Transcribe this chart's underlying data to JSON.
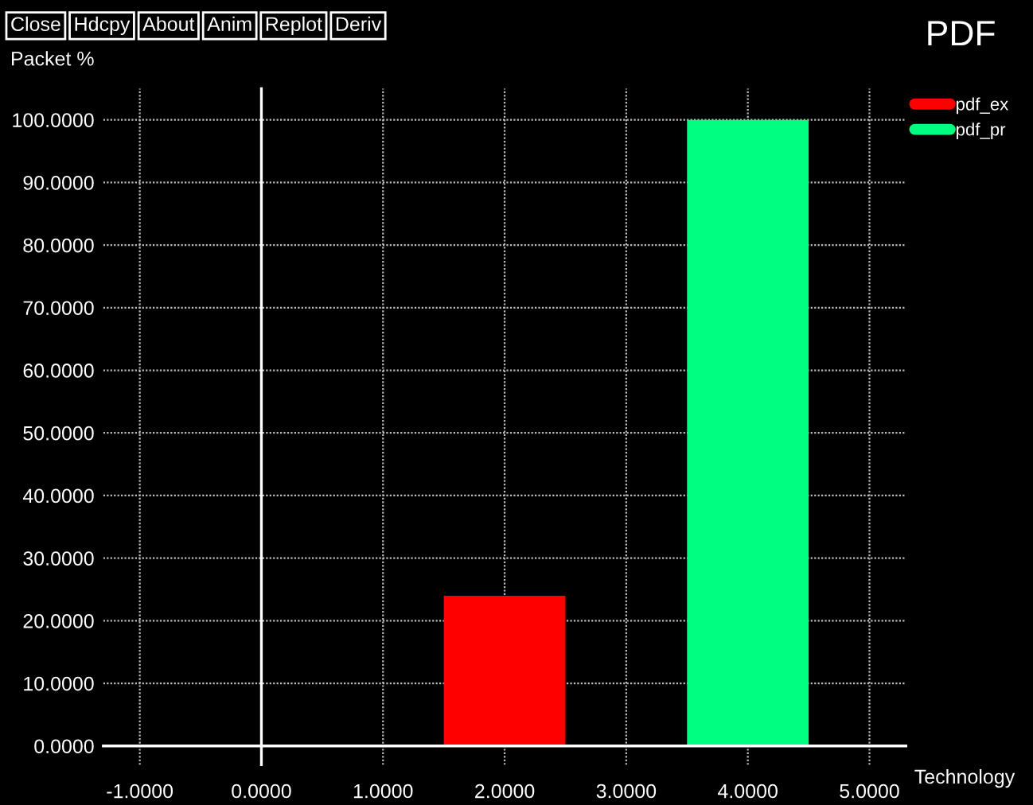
{
  "chart_data": {
    "type": "bar",
    "title": "PDF",
    "xlabel": "Technology",
    "ylabel": "Packet %",
    "annotations": [
      "Close",
      "Hdcpy",
      "About",
      "Anim",
      "Replot",
      "Deriv"
    ],
    "series": [
      {
        "name": "pdf_ex",
        "color": "#ff0000",
        "x": [
          2
        ],
        "values": [
          24
        ]
      },
      {
        "name": "pdf_pr",
        "color": "#00ff80",
        "x": [
          4
        ],
        "values": [
          100
        ]
      }
    ],
    "xlim": [
      -1.3,
      5.3
    ],
    "xticks": [
      {
        "value": -1,
        "label": "-1.0000"
      },
      {
        "value": 0,
        "label": "0.0000"
      },
      {
        "value": 1,
        "label": "1.0000"
      },
      {
        "value": 2,
        "label": "2.0000"
      },
      {
        "value": 3,
        "label": "3.0000"
      },
      {
        "value": 4,
        "label": "4.0000"
      },
      {
        "value": 5,
        "label": "5.0000"
      }
    ],
    "ylim": [
      -3,
      105
    ],
    "yticks": [
      {
        "value": 0,
        "label": "0.0000"
      },
      {
        "value": 10,
        "label": "10.0000"
      },
      {
        "value": 20,
        "label": "20.0000"
      },
      {
        "value": 30,
        "label": "30.0000"
      },
      {
        "value": 40,
        "label": "40.0000"
      },
      {
        "value": 50,
        "label": "50.0000"
      },
      {
        "value": 60,
        "label": "60.0000"
      },
      {
        "value": 70,
        "label": "70.0000"
      },
      {
        "value": 80,
        "label": "80.0000"
      },
      {
        "value": 90,
        "label": "90.0000"
      },
      {
        "value": 100,
        "label": "100.0000"
      }
    ],
    "grid": true,
    "legend": "right"
  }
}
